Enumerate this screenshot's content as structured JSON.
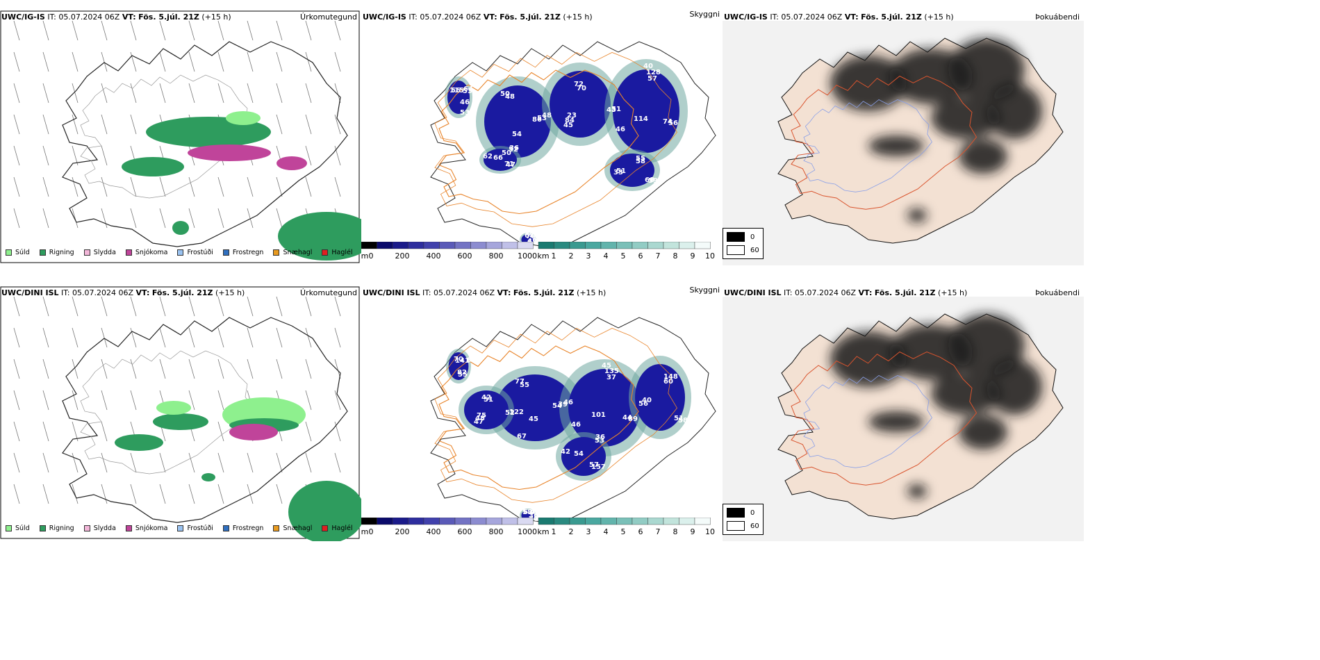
{
  "rows": [
    {
      "model": "UWC/IG-IS",
      "it_label": "IT:",
      "it_value": "05.07.2024 06Z",
      "vt_label": "VT:",
      "vt_value": "Fös. 5.júl. 21Z",
      "lead": "(+15 h)",
      "precip_title": "Úrkomutegund",
      "cloud_title": "Skyggni",
      "fog_title": "Þokuábendi",
      "ceiling_numbers": [
        "86",
        "23",
        "57",
        "68",
        "62",
        "53",
        "42",
        "48",
        "43",
        "46",
        "58",
        "71",
        "56",
        "57",
        "50",
        "70",
        "74",
        "51",
        "52",
        "53",
        "70",
        "53",
        "84",
        "128",
        "59",
        "66",
        "64",
        "65",
        "50",
        "51",
        "114",
        "55",
        "47",
        "115",
        "44",
        "54",
        "72",
        "56",
        "33",
        "36",
        "46",
        "68",
        "48",
        "45",
        "40"
      ]
    },
    {
      "model": "UWC/DINI ISL",
      "it_label": "IT:",
      "it_value": "05.07.2024 06Z",
      "vt_label": "VT:",
      "vt_value": "Fös. 5.júl. 21Z",
      "lead": "(+15 h)",
      "precip_title": "Úrkomutegund",
      "cloud_title": "Skyggni",
      "fog_title": "Þokuábendi",
      "ceiling_numbers": [
        "54",
        "75",
        "37",
        "51",
        "42",
        "43",
        "82",
        "55",
        "52",
        "46",
        "60",
        "57",
        "62",
        "64",
        "67",
        "51",
        "44",
        "40",
        "53",
        "70",
        "141",
        "39",
        "48",
        "135",
        "58",
        "54",
        "45",
        "55",
        "77",
        "122",
        "101",
        "148",
        "157",
        "58",
        "51",
        "45",
        "42",
        "89",
        "56",
        "36",
        "36",
        "70",
        "46",
        "47",
        "45"
      ]
    }
  ],
  "precip_legend": [
    {
      "label": "Súld",
      "color": "#8ef08e"
    },
    {
      "label": "Rigning",
      "color": "#2e9c5e"
    },
    {
      "label": "Slydda",
      "color": "#f2b6d8"
    },
    {
      "label": "Snjókoma",
      "color": "#c0449a"
    },
    {
      "label": "Frostúði",
      "color": "#99c2f0"
    },
    {
      "label": "Frostregn",
      "color": "#2f6fbf"
    },
    {
      "label": "Snæhagl",
      "color": "#e89a1f"
    },
    {
      "label": "Haglél",
      "color": "#e02020"
    }
  ],
  "ceiling_bar": {
    "unit": "m",
    "ticks": [
      "0",
      "200",
      "400",
      "600",
      "800",
      "1000"
    ]
  },
  "visibility_bar": {
    "unit": "km",
    "ticks": [
      "1",
      "2",
      "3",
      "4",
      "5",
      "6",
      "7",
      "8",
      "9",
      "10"
    ]
  },
  "fog_legend": [
    {
      "label": "0",
      "color": "#000000"
    },
    {
      "label": "60",
      "color": "#ffffff"
    }
  ]
}
